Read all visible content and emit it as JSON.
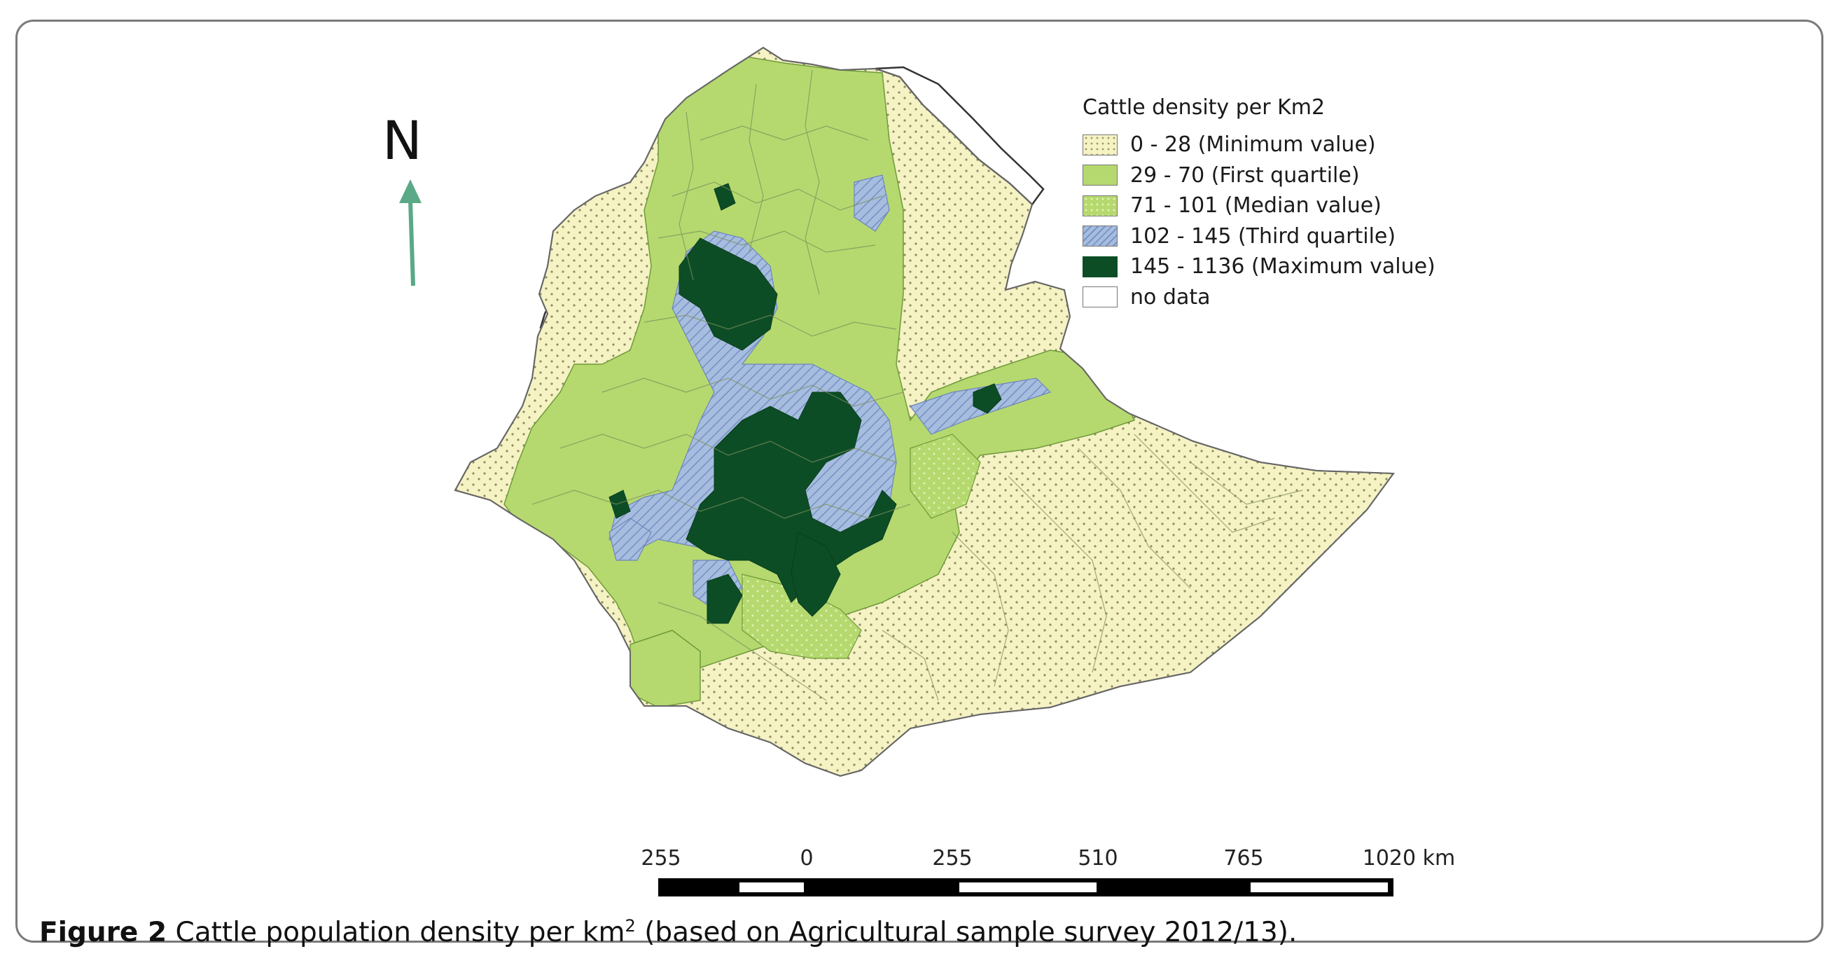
{
  "north_arrow": {
    "label": "N",
    "color": "#5aa987"
  },
  "legend": {
    "title": "Cattle density per Km2",
    "items": [
      {
        "label": "0 - 28 (Minimum value)",
        "class": "minimum",
        "color": "#f5f2c4",
        "pattern": "dots"
      },
      {
        "label": "29 - 70 (First quartile)",
        "class": "first-quartile",
        "color": "#b5d96f",
        "pattern": "solid"
      },
      {
        "label": "71 - 101 (Median value)",
        "class": "median",
        "color": "#b5d96f",
        "pattern": "light-dots"
      },
      {
        "label": "102 - 145 (Third quartile)",
        "class": "third-quartile",
        "color": "#a6bde0",
        "pattern": "hatch"
      },
      {
        "label": "145 - 1136 (Maximum value)",
        "class": "maximum",
        "color": "#0c4d26",
        "pattern": "solid"
      },
      {
        "label": "no data",
        "class": "no-data",
        "color": "#ffffff",
        "pattern": "outline"
      }
    ]
  },
  "scale_bar": {
    "labels": [
      "255",
      "0",
      "255",
      "510",
      "765",
      "1020 km"
    ]
  },
  "caption": {
    "figure_label": "Figure 2",
    "text_before": " Cattle population density per km",
    "superscript": "2",
    "text_after": " (based on Agricultural sample survey 2012/13)."
  }
}
